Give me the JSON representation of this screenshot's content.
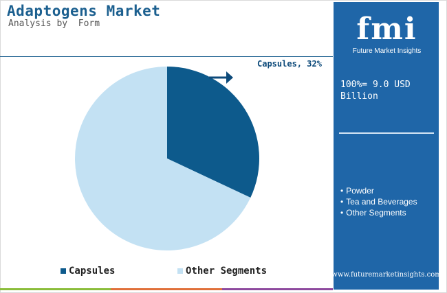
{
  "header": {
    "title": "Adaptogens Market",
    "subtitle": "Analysis by  Form"
  },
  "chart_data": {
    "type": "pie",
    "title": "Adaptogens Market",
    "subtitle": "Analysis by  Form",
    "slices": [
      {
        "label": "Capsules",
        "value": 32,
        "color": "#0d5a8c"
      },
      {
        "label": "Other Segments",
        "value": 68,
        "color": "#c3e1f3"
      }
    ],
    "start_angle_deg": 0,
    "direction": "clockwise",
    "annotations": [
      "Capsules, 32%"
    ],
    "legend": {
      "placement": "bottom",
      "entries": [
        "Capsules",
        "Other Segments"
      ]
    }
  },
  "callout": {
    "text": "Capsules, 32%"
  },
  "side_panel": {
    "logo_text": "fmi",
    "logo_subtitle": "Future Market Insights",
    "total_label": "100%= 9.0 USD Billion",
    "segments": [
      "Powder",
      "Tea and Beverages",
      "Other Segments"
    ],
    "website": "www.futuremarketinsights.com"
  },
  "colors": {
    "accent": "#1b5f8f",
    "panel": "#1f66a8",
    "capsules": "#0d5a8c",
    "other_segments": "#c3e1f3",
    "bar_segments": [
      "#8bbd3b",
      "#e0703a",
      "#8e4a9e"
    ]
  }
}
